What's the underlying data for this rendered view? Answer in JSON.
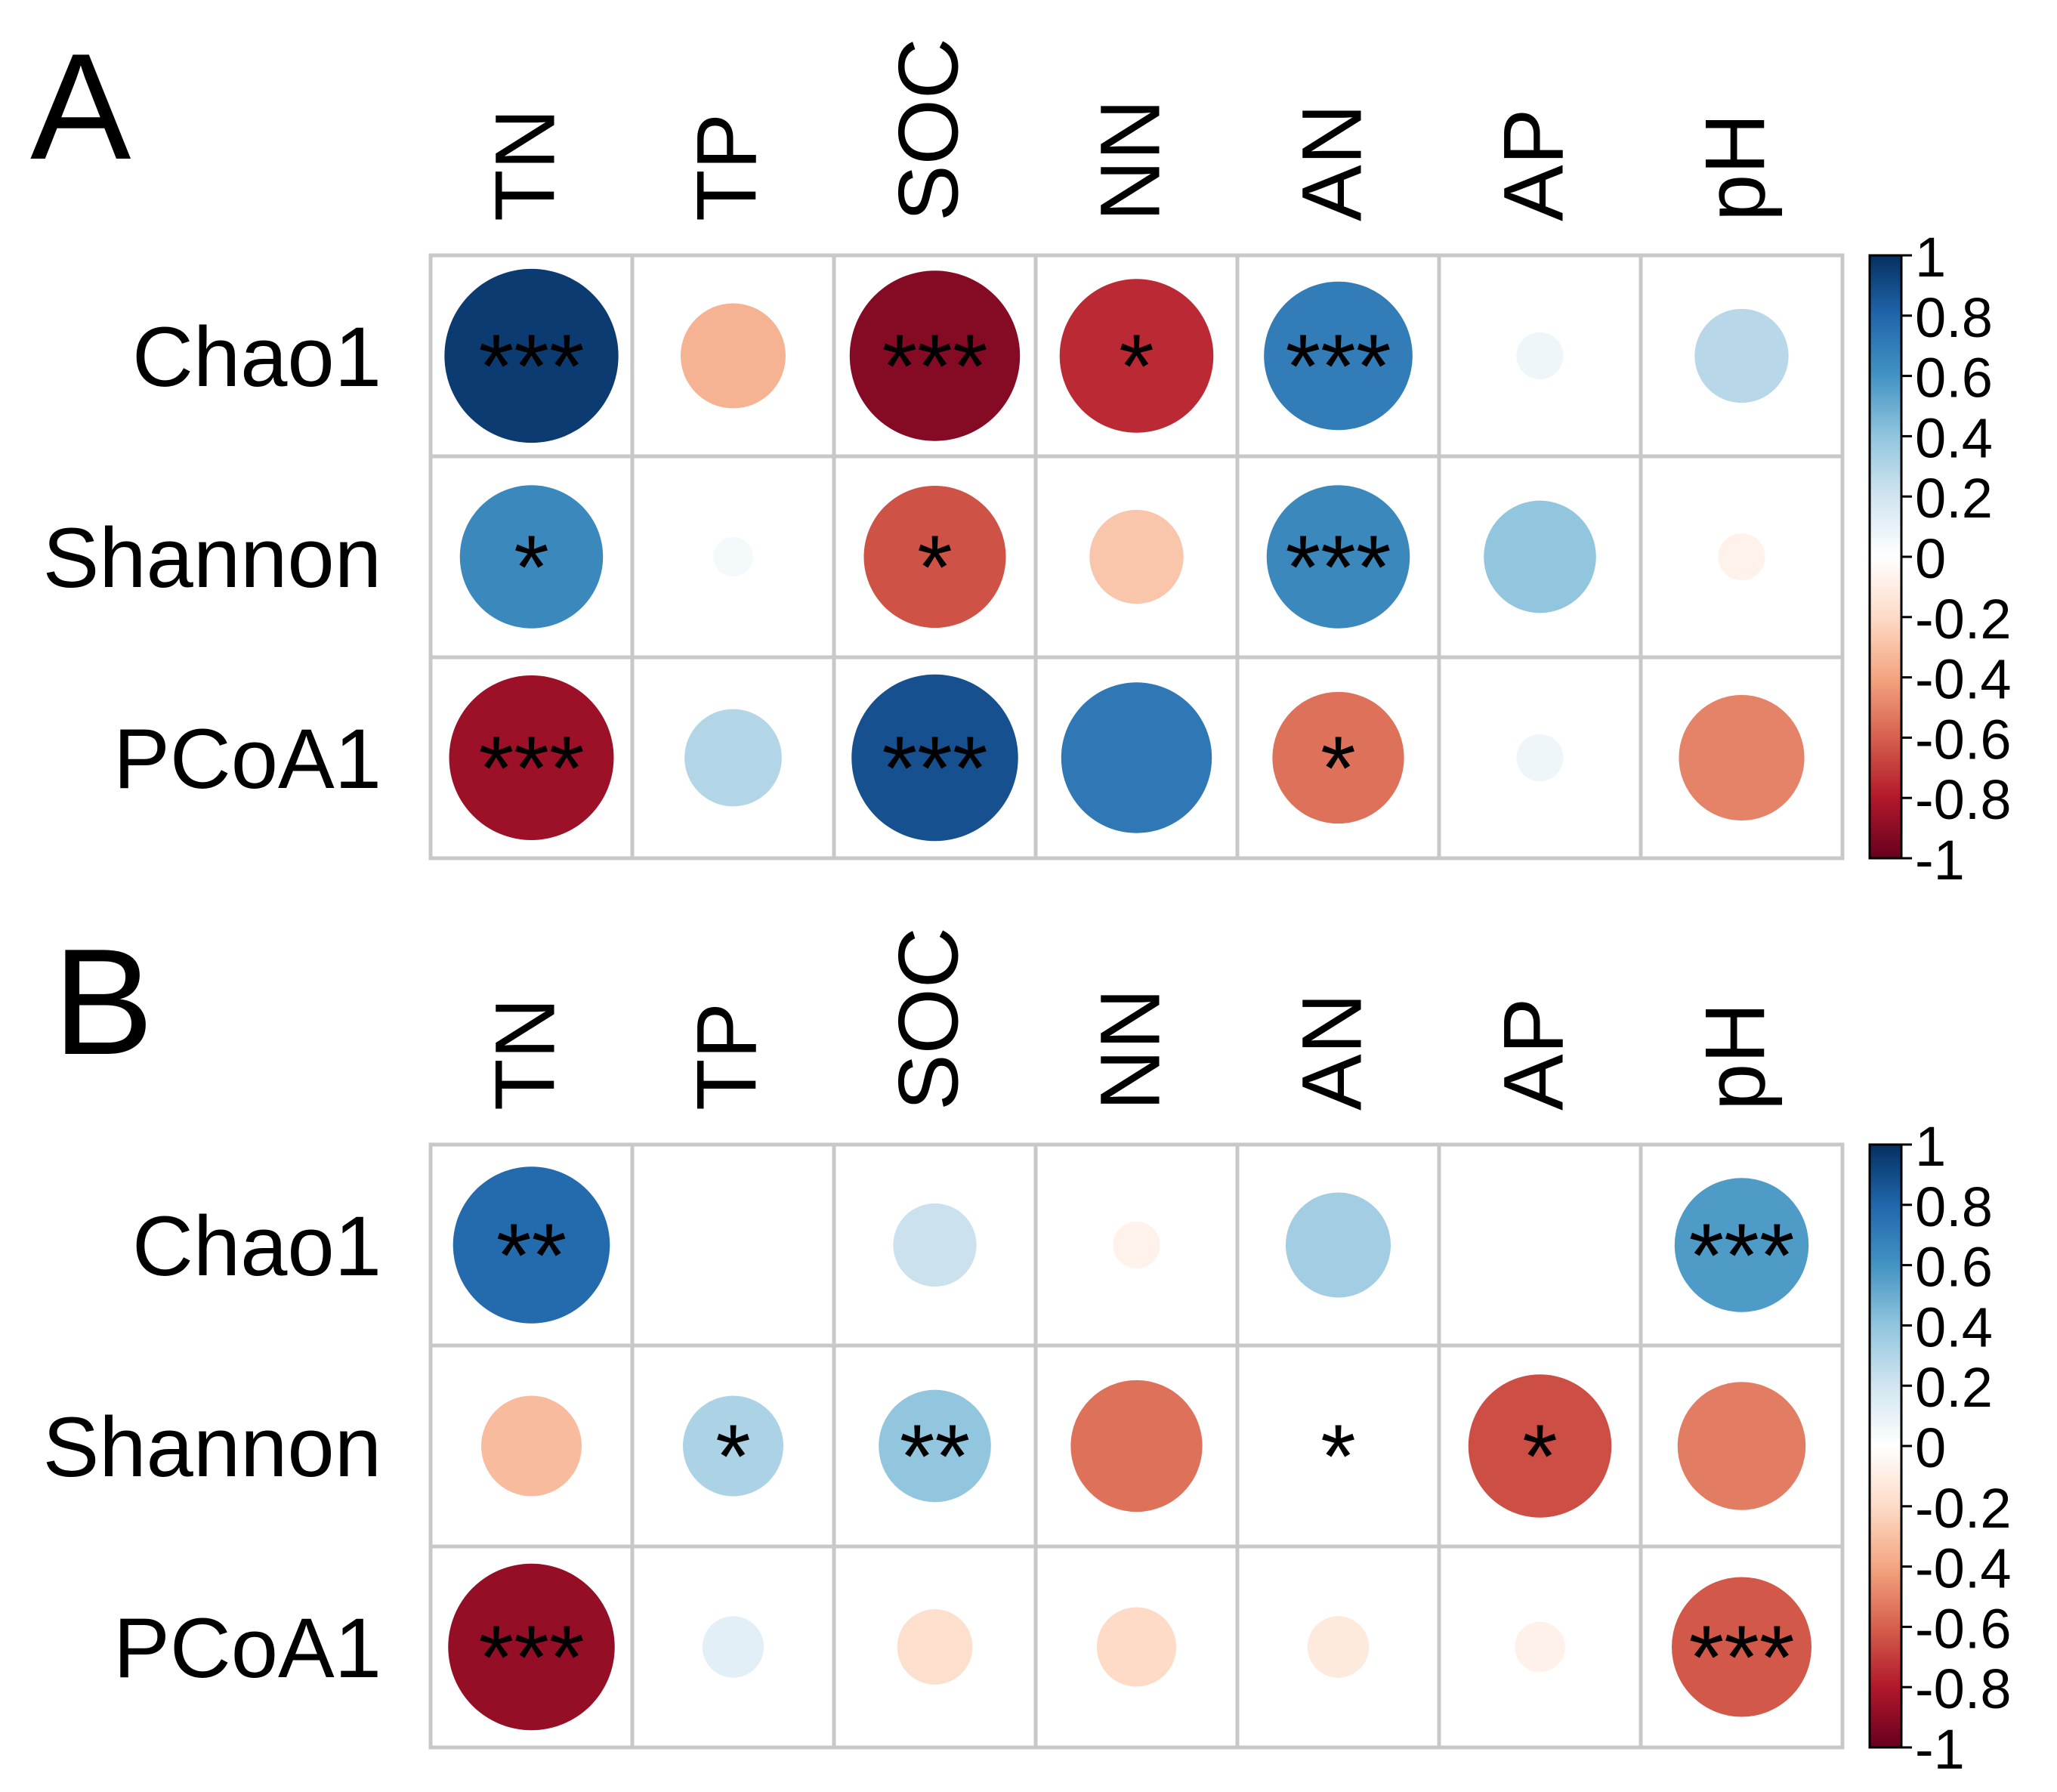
{
  "chart_data": [
    {
      "type": "heatmap",
      "panel_label": "A",
      "columns": [
        "TN",
        "TP",
        "SOC",
        "NN",
        "AN",
        "AP",
        "pH"
      ],
      "rows": [
        "Chao1",
        "Shannon",
        "PCoA1"
      ],
      "values": [
        [
          0.96,
          -0.35,
          -0.92,
          -0.75,
          0.7,
          0.07,
          0.28
        ],
        [
          0.65,
          0.05,
          -0.64,
          -0.28,
          0.65,
          0.4,
          -0.07
        ],
        [
          -0.86,
          0.3,
          0.88,
          0.72,
          -0.55,
          0.07,
          -0.5
        ]
      ],
      "significance": [
        [
          "***",
          "",
          "***",
          "*",
          "***",
          "",
          ""
        ],
        [
          "*",
          "",
          "*",
          "",
          "***",
          "",
          ""
        ],
        [
          "***",
          "",
          "***",
          "",
          "*",
          "",
          ""
        ]
      ],
      "colorbar": {
        "range": [
          -1,
          1
        ],
        "ticks": [
          "1",
          "0.8",
          "0.6",
          "0.4",
          "0.2",
          "0",
          "-0.2",
          "-0.4",
          "-0.6",
          "-0.8",
          "-1"
        ]
      }
    },
    {
      "type": "heatmap",
      "panel_label": "B",
      "columns": [
        "TN",
        "TP",
        "SOC",
        "NN",
        "AN",
        "AP",
        "pH"
      ],
      "rows": [
        "Chao1",
        "Shannon",
        "PCoA1"
      ],
      "values": [
        [
          0.78,
          0.0,
          0.22,
          -0.07,
          0.35,
          0.0,
          0.57
        ],
        [
          -0.32,
          0.32,
          0.4,
          -0.55,
          0.0,
          -0.65,
          -0.52
        ],
        [
          -0.88,
          0.12,
          -0.18,
          -0.2,
          -0.12,
          -0.08,
          -0.62
        ]
      ],
      "significance": [
        [
          "**",
          "",
          "",
          "",
          "",
          "",
          "***"
        ],
        [
          "",
          "*",
          "**",
          "",
          "*",
          "*",
          ""
        ],
        [
          "***",
          "",
          "",
          "",
          "",
          "",
          "***"
        ]
      ],
      "colorbar": {
        "range": [
          -1,
          1
        ],
        "ticks": [
          "1",
          "0.8",
          "0.6",
          "0.4",
          "0.2",
          "0",
          "-0.2",
          "-0.4",
          "-0.6",
          "-0.8",
          "-1"
        ]
      }
    }
  ]
}
